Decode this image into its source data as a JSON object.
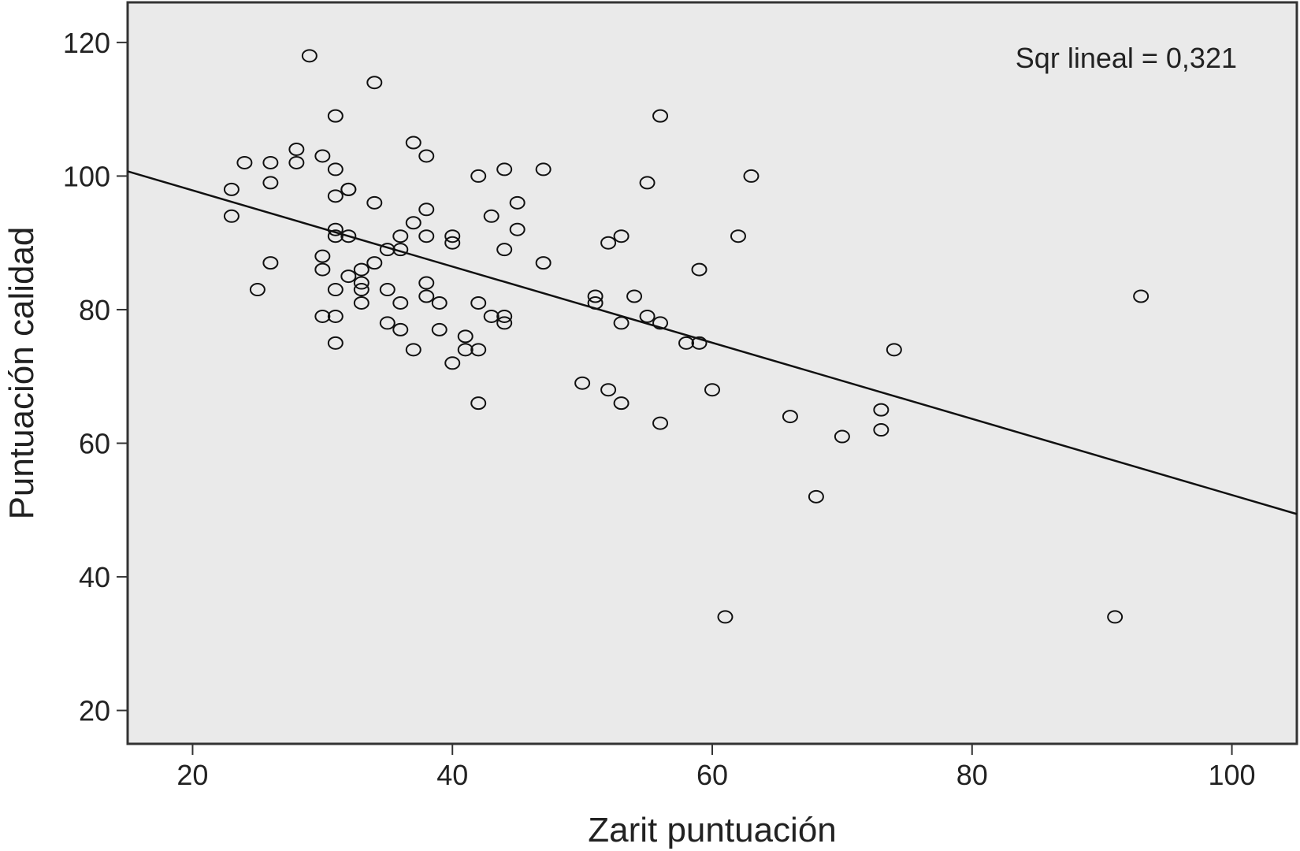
{
  "chart_data": {
    "type": "scatter",
    "title": "",
    "xlabel": "Zarit puntuación",
    "ylabel": "Puntuación calidad",
    "xlim": [
      15,
      105
    ],
    "ylim": [
      15,
      126
    ],
    "xticks": [
      20,
      40,
      60,
      80,
      100
    ],
    "yticks": [
      20,
      40,
      60,
      80,
      100,
      120
    ],
    "grid": false,
    "legend": "none",
    "colors": {
      "plot_bg": "#eaeaea",
      "marker": "#111111",
      "line": "#111111"
    },
    "annotation": "Sqr lineal = 0,321",
    "fit_line": {
      "x": [
        15,
        105
      ],
      "y": [
        100.7,
        49.4
      ]
    },
    "points": [
      [
        29,
        118
      ],
      [
        34,
        114
      ],
      [
        31,
        109
      ],
      [
        56,
        109
      ],
      [
        37,
        105
      ],
      [
        28,
        104
      ],
      [
        38,
        103
      ],
      [
        30,
        103
      ],
      [
        24,
        102
      ],
      [
        26,
        102
      ],
      [
        28,
        102
      ],
      [
        31,
        101
      ],
      [
        44,
        101
      ],
      [
        47,
        101
      ],
      [
        42,
        100
      ],
      [
        63,
        100
      ],
      [
        26,
        99
      ],
      [
        55,
        99
      ],
      [
        23,
        98
      ],
      [
        32,
        98
      ],
      [
        32,
        98
      ],
      [
        31,
        97
      ],
      [
        34,
        96
      ],
      [
        45,
        96
      ],
      [
        38,
        95
      ],
      [
        23,
        94
      ],
      [
        43,
        94
      ],
      [
        37,
        93
      ],
      [
        31,
        92
      ],
      [
        45,
        92
      ],
      [
        31,
        91
      ],
      [
        32,
        91
      ],
      [
        36,
        91
      ],
      [
        38,
        91
      ],
      [
        40,
        91
      ],
      [
        53,
        91
      ],
      [
        62,
        91
      ],
      [
        40,
        90
      ],
      [
        52,
        90
      ],
      [
        35,
        89
      ],
      [
        36,
        89
      ],
      [
        44,
        89
      ],
      [
        30,
        88
      ],
      [
        26,
        87
      ],
      [
        34,
        87
      ],
      [
        47,
        87
      ],
      [
        30,
        86
      ],
      [
        33,
        86
      ],
      [
        59,
        86
      ],
      [
        32,
        85
      ],
      [
        33,
        84
      ],
      [
        38,
        84
      ],
      [
        31,
        83
      ],
      [
        33,
        83
      ],
      [
        35,
        83
      ],
      [
        25,
        83
      ],
      [
        38,
        82
      ],
      [
        51,
        82
      ],
      [
        54,
        82
      ],
      [
        93,
        82
      ],
      [
        33,
        81
      ],
      [
        36,
        81
      ],
      [
        39,
        81
      ],
      [
        42,
        81
      ],
      [
        51,
        81
      ],
      [
        30,
        79
      ],
      [
        31,
        79
      ],
      [
        43,
        79
      ],
      [
        44,
        79
      ],
      [
        55,
        79
      ],
      [
        35,
        78
      ],
      [
        44,
        78
      ],
      [
        53,
        78
      ],
      [
        56,
        78
      ],
      [
        36,
        77
      ],
      [
        39,
        77
      ],
      [
        41,
        76
      ],
      [
        31,
        75
      ],
      [
        58,
        75
      ],
      [
        59,
        75
      ],
      [
        37,
        74
      ],
      [
        41,
        74
      ],
      [
        42,
        74
      ],
      [
        74,
        74
      ],
      [
        40,
        72
      ],
      [
        50,
        69
      ],
      [
        52,
        68
      ],
      [
        60,
        68
      ],
      [
        42,
        66
      ],
      [
        53,
        66
      ],
      [
        73,
        65
      ],
      [
        66,
        64
      ],
      [
        56,
        63
      ],
      [
        73,
        62
      ],
      [
        70,
        61
      ],
      [
        68,
        52
      ],
      [
        61,
        34
      ],
      [
        91,
        34
      ]
    ]
  }
}
